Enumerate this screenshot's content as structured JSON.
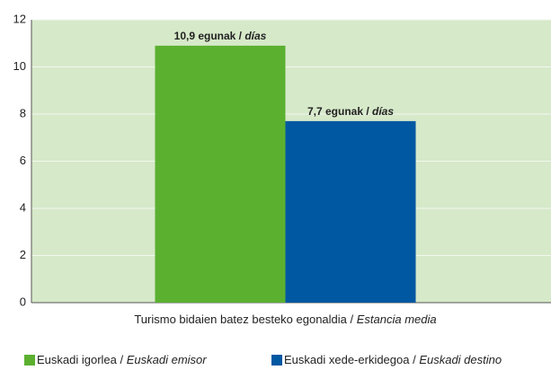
{
  "chart_data": {
    "type": "bar",
    "categories": [
      "Turismo bidaien batez besteko egonaldia / Estancia media"
    ],
    "series": [
      {
        "name": "Euskadi igorlea / Euskadi emisor",
        "color": "#5bb030",
        "values": [
          10.9
        ],
        "value_labels": [
          "10,9 egunak / días"
        ]
      },
      {
        "name": "Euskadi xede-erkidegoa / Euskadi destino",
        "color": "#0058a2",
        "values": [
          7.7
        ],
        "value_labels": [
          "7,7 egunak / días"
        ]
      }
    ],
    "ylim": [
      0,
      12
    ],
    "yticks": [
      0,
      2,
      4,
      6,
      8,
      10,
      12
    ],
    "grid": true,
    "legend": "bottom"
  }
}
